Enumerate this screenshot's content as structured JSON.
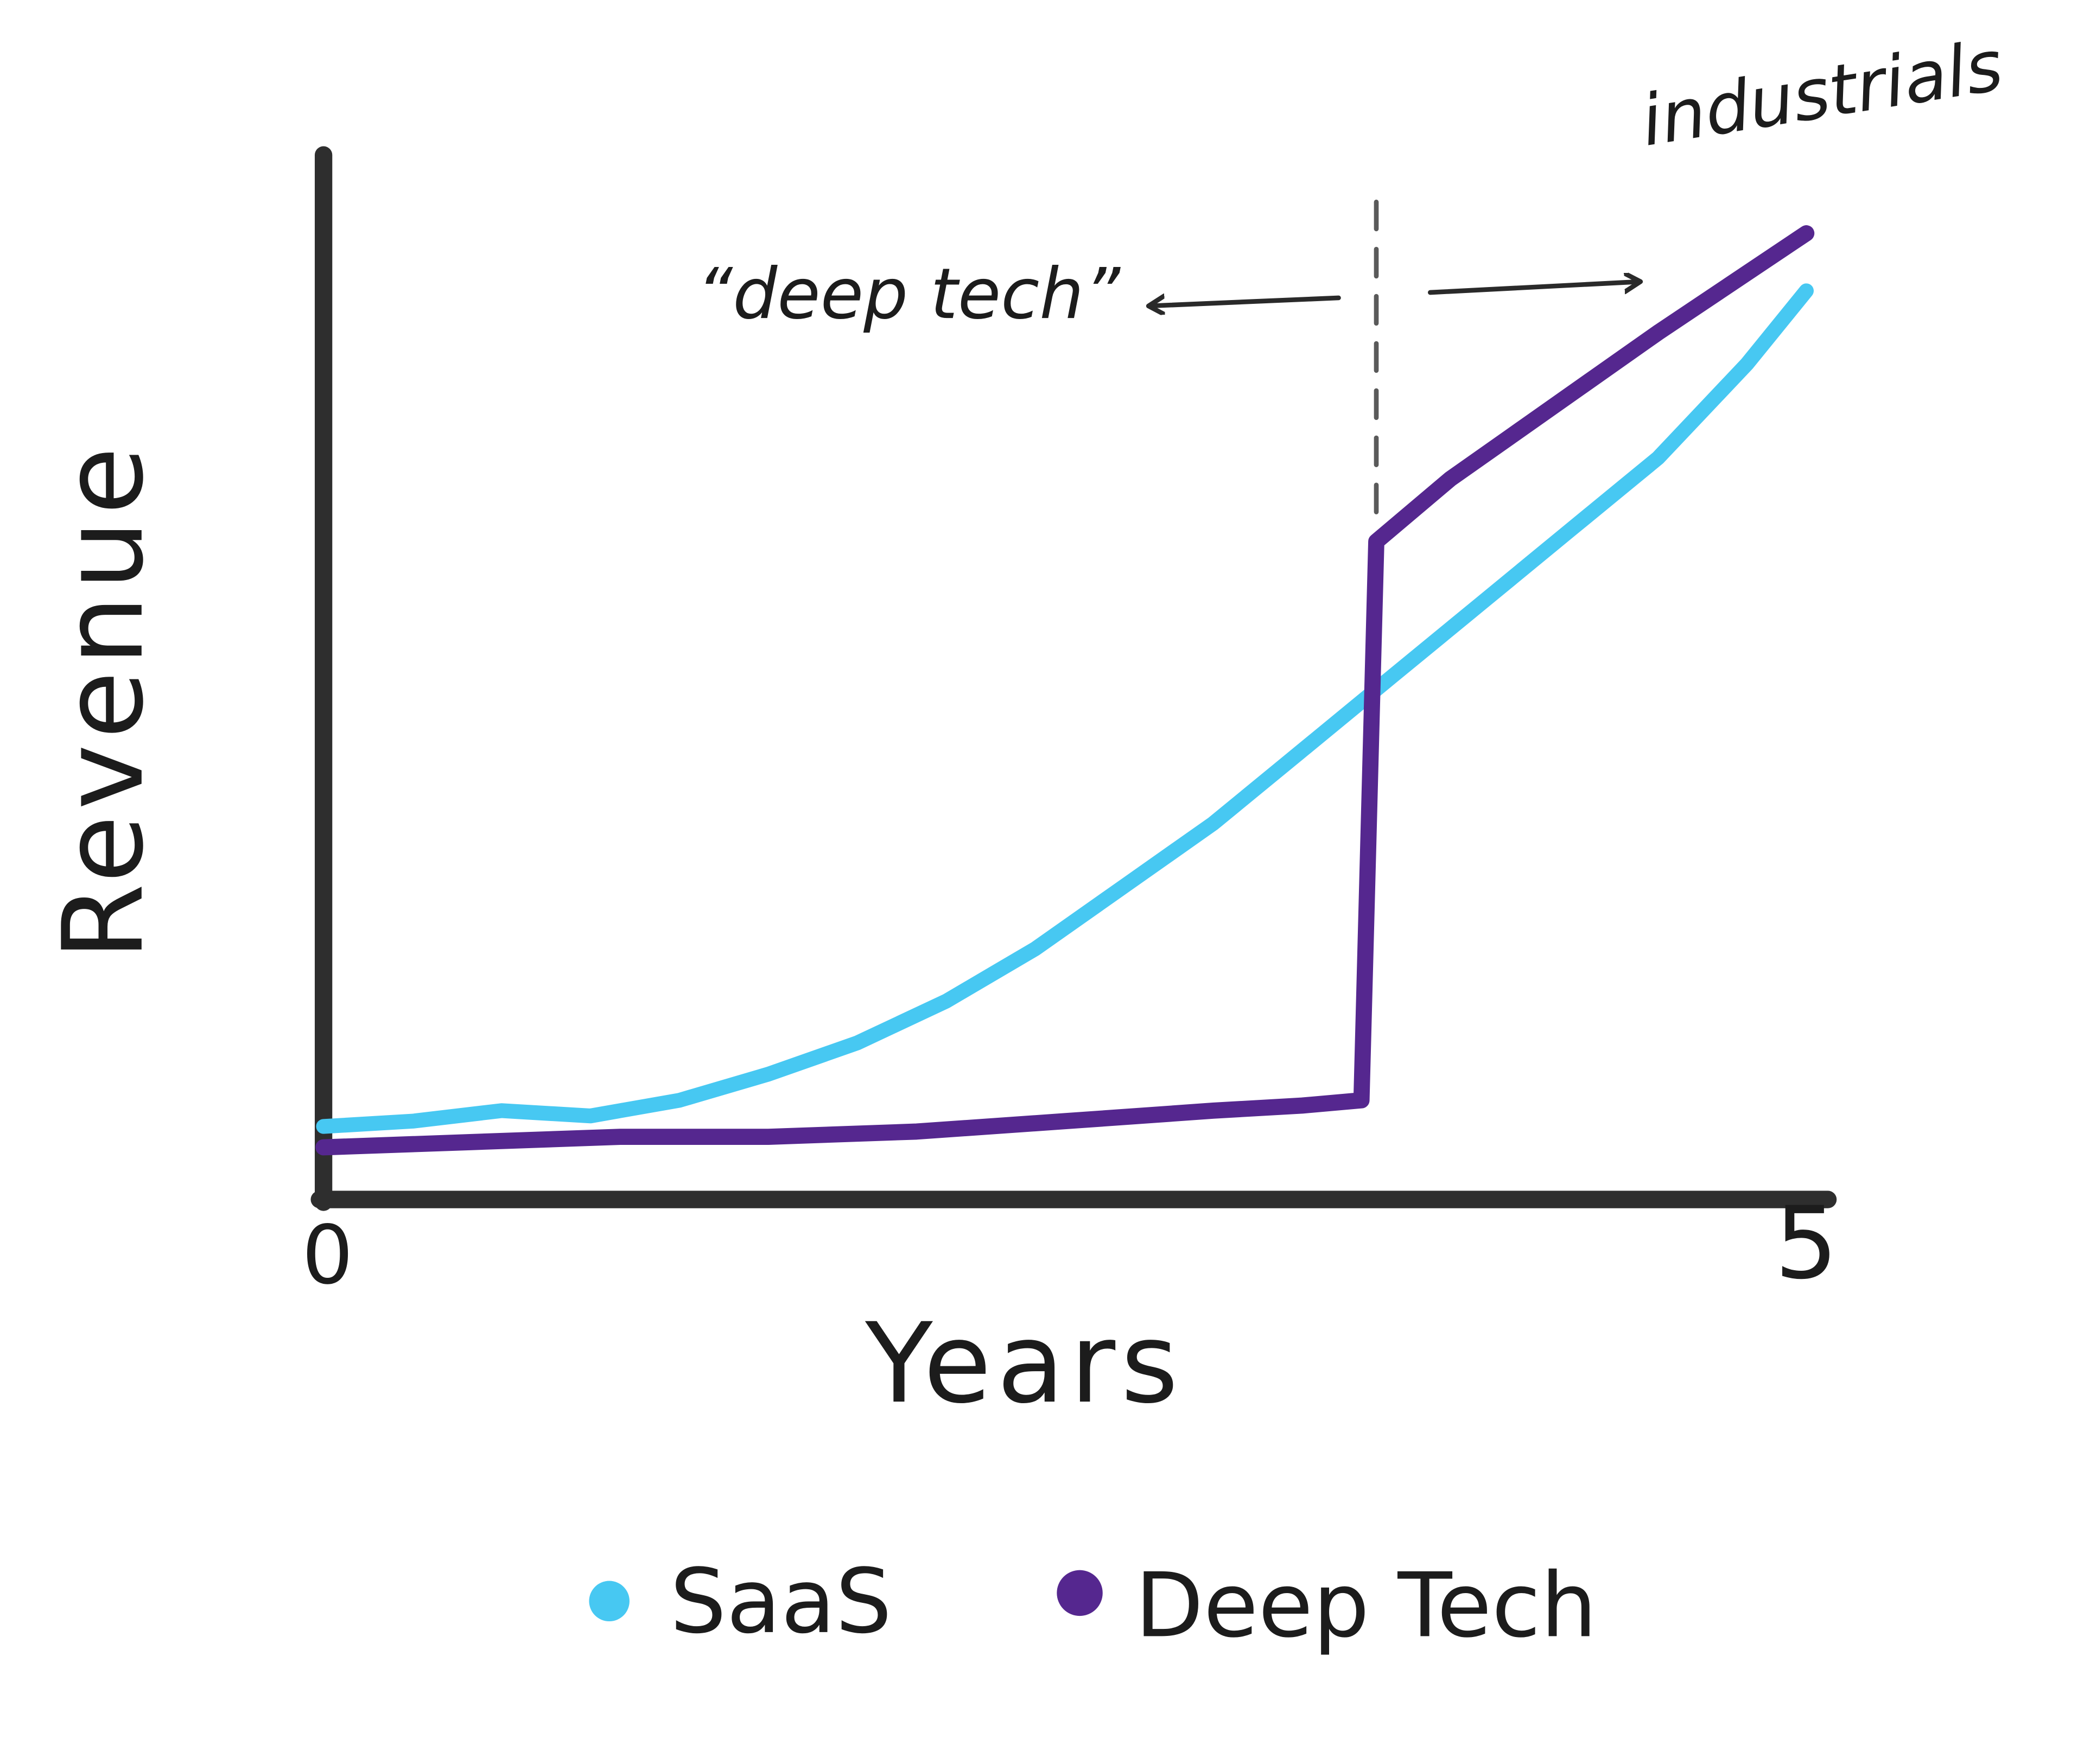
{
  "page": {
    "background": "#ffffff"
  },
  "colors": {
    "axis": "#2e2e2e",
    "text": "#1c1c1c",
    "saas": "#47c8f2",
    "deep_tech": "#55278f",
    "dashed_line": "#5a5a5a"
  },
  "chart_data": {
    "type": "line",
    "title": "",
    "xlabel": "Years",
    "ylabel": "Revenue",
    "x_ticks": [
      "0",
      "5"
    ],
    "xlim": [
      0,
      5
    ],
    "ylim": [
      0,
      100
    ],
    "grid": false,
    "legend_position": "bottom",
    "series": [
      {
        "name": "SaaS",
        "color": "#47c8f2",
        "x": [
          0,
          0.3,
          0.6,
          0.9,
          1.2,
          1.5,
          1.8,
          2.1,
          2.4,
          2.7,
          3.0,
          3.3,
          3.6,
          3.9,
          4.2,
          4.5,
          4.8,
          5.0
        ],
        "y": [
          7,
          7.5,
          8.5,
          8,
          9.5,
          12,
          15,
          19,
          24,
          30,
          36,
          43,
          50,
          57,
          64,
          71,
          80,
          87
        ]
      },
      {
        "name": "Deep Tech",
        "color": "#55278f",
        "x": [
          0,
          0.5,
          1.0,
          1.5,
          2.0,
          2.5,
          3.0,
          3.3,
          3.5,
          3.55,
          3.8,
          4.0,
          4.5,
          5.0
        ],
        "y": [
          5,
          5.5,
          6,
          6,
          6.5,
          7.5,
          8.5,
          9,
          9.5,
          63,
          69,
          73,
          83,
          92.5
        ]
      }
    ],
    "annotations": {
      "divider_x": 3.55,
      "divider_y_top": 95.5,
      "divider_y_bottom": 64.5,
      "left_label": "“deep tech”",
      "right_label": "industrials"
    }
  }
}
